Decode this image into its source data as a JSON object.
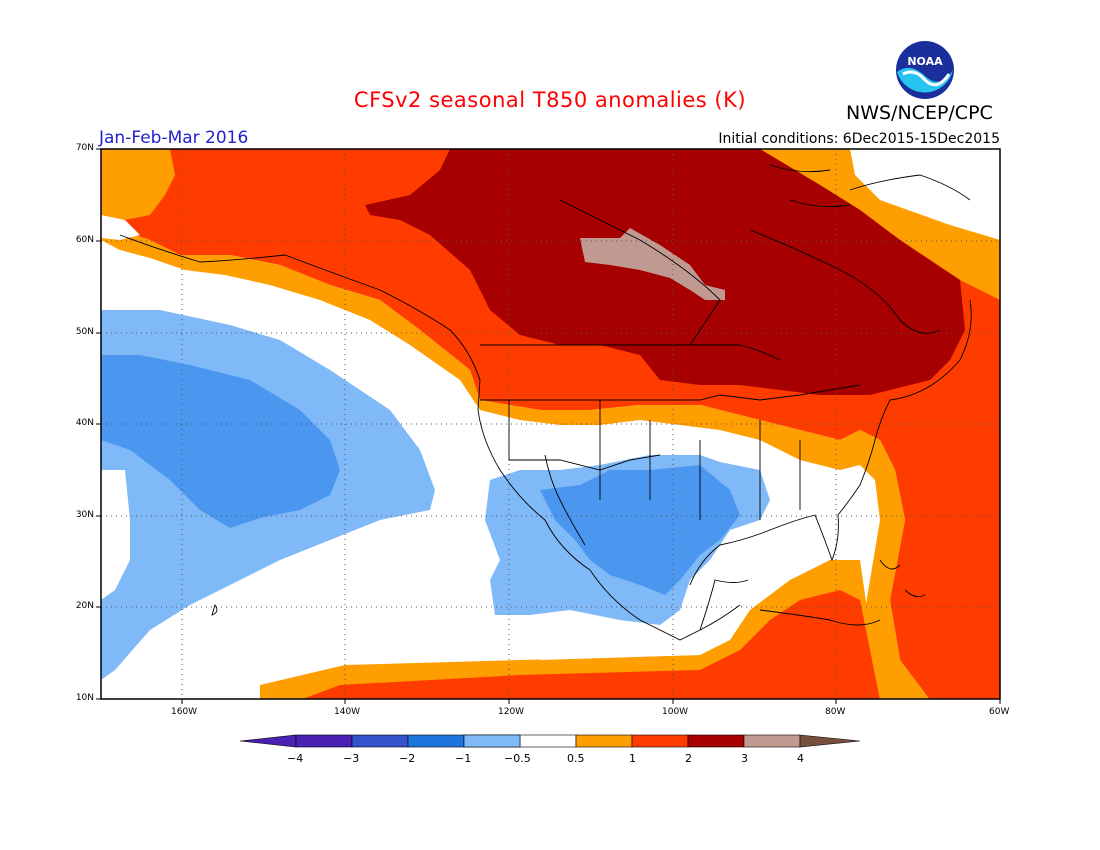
{
  "title": "CFSv2 seasonal T850 anomalies (K)",
  "agency": "NWS/NCEP/CPC",
  "logo_text": "NOAA",
  "period": "Jan-Feb-Mar 2016",
  "initial_conditions": "Initial conditions: 6Dec2015-15Dec2015",
  "map": {
    "lat_labels": [
      "70N",
      "60N",
      "50N",
      "40N",
      "30N",
      "20N",
      "10N"
    ],
    "lon_labels": [
      "160W",
      "140W",
      "120W",
      "100W",
      "80W",
      "60W"
    ]
  },
  "colorbar": {
    "labels": [
      "−4",
      "−3",
      "−2",
      "−1",
      "−0.5",
      "0.5",
      "1",
      "2",
      "3",
      "4"
    ],
    "colors": [
      "#4b21b4",
      "#3352cc",
      "#1f75de",
      "#4b97f0",
      "#7fb9f7",
      "#ffffff",
      "#ff9e00",
      "#ff3c00",
      "#a60000",
      "#c09a90",
      "#764f3e"
    ]
  },
  "colors": {
    "neg05": "#7fb9f7",
    "neg1": "#4b97f0",
    "pos05": "#ff9e00",
    "pos1": "#ff3c00",
    "pos2": "#a60000",
    "pos3": "#c09a90",
    "title": "#ff0000",
    "period": "#2222cc"
  }
}
